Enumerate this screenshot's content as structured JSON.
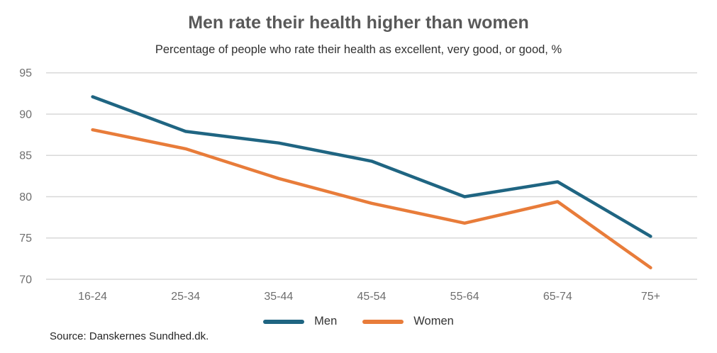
{
  "chart_data": {
    "type": "line",
    "title": "Men rate their health higher than women",
    "subtitle": "Percentage of people who rate their health as excellent, very good, or good, %",
    "categories": [
      "16-24",
      "25-34",
      "35-44",
      "45-54",
      "55-64",
      "65-74",
      "75+"
    ],
    "series": [
      {
        "name": "Men",
        "color": "#1f6582",
        "values": [
          92.1,
          87.9,
          86.5,
          84.3,
          80.0,
          81.8,
          75.2
        ]
      },
      {
        "name": "Women",
        "color": "#e87c3a",
        "values": [
          88.1,
          85.8,
          82.2,
          79.2,
          76.8,
          79.4,
          71.4
        ]
      }
    ],
    "xlabel": "",
    "ylabel": "",
    "ylim": [
      70,
      95
    ],
    "yticks": [
      95,
      90,
      85,
      80,
      75,
      70
    ],
    "grid": true,
    "grid_color": "#d8d8d8",
    "legend_position": "bottom"
  },
  "source": {
    "text": "Source: Danskernes Sundhed.dk."
  }
}
